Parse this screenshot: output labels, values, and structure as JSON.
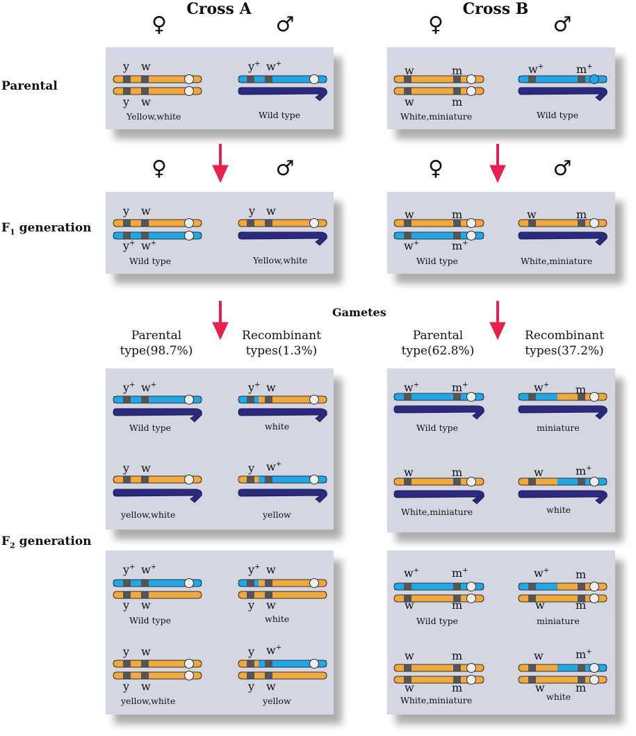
{
  "crosses": {
    "a": {
      "title": "Cross A"
    },
    "b": {
      "title": "Cross B"
    }
  },
  "symbols": {
    "female": "♀",
    "male": "♂"
  },
  "rows": {
    "parental": "Parental",
    "f1_main": "F",
    "f1_sub": "1",
    "f1_rest": " generation",
    "f2_main": "F",
    "f2_sub": "2",
    "f2_rest": " generation"
  },
  "gametes_label": "Gametes",
  "gamete_headers": {
    "a_parental": [
      "Parental",
      "type(98.7%)"
    ],
    "a_recombinant": [
      "Recombinant",
      "types(1.3%)"
    ],
    "b_parental": [
      "Parental",
      "type(62.8%)"
    ],
    "b_recombinant": [
      "Recombinant",
      "types(37.2%)"
    ]
  },
  "captions": {
    "yellow_white_cap": "Yellow,white",
    "wild_type": "Wild type",
    "white_miniature_cap": "White,miniature",
    "white": "white",
    "yellow": "yellow",
    "yellow_white": "yellow,white",
    "miniature": "miniature"
  },
  "gene_labels": {
    "y": "y",
    "w": "w",
    "m": "m",
    "plus": "+"
  },
  "colors": {
    "orange": "#f2a93b",
    "blue": "#1fa8e8",
    "navy": "#2b2a7e",
    "band": "#555555",
    "panel": "#d4d6e1",
    "arrow": "#e8204e",
    "centromere": "#eeeeee"
  }
}
